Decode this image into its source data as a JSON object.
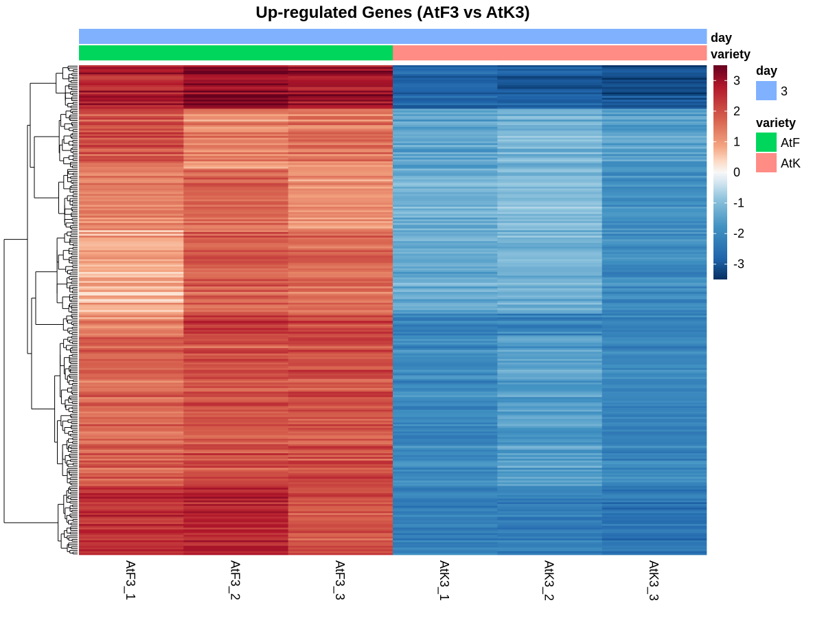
{
  "chart_data": {
    "type": "heatmap",
    "title": "Up-regulated Genes (AtF3 vs AtK3)",
    "columns": [
      "AtF3_1",
      "AtF3_2",
      "AtF3_3",
      "AtK3_1",
      "AtK3_2",
      "AtK3_3"
    ],
    "column_annotations": {
      "day": [
        "3",
        "3",
        "3",
        "3",
        "3",
        "3"
      ],
      "variety": [
        "AtF",
        "AtF",
        "AtF",
        "AtK",
        "AtK",
        "AtK"
      ]
    },
    "annotation_track_labels": [
      "day",
      "variety"
    ],
    "colorbar": {
      "min": -3.5,
      "max": 3.5,
      "ticks": [
        3,
        2,
        1,
        0,
        -1,
        -2,
        -3
      ],
      "tick_labels": [
        "3",
        "2",
        "1",
        "0",
        "-1",
        "-2",
        "-3"
      ],
      "low_color": "#053061",
      "mid_color": "#f7f7f7",
      "high_color": "#67001f"
    },
    "legend": {
      "day": {
        "title": "day",
        "items": [
          {
            "label": "3",
            "color": "#80b1ff"
          }
        ]
      },
      "variety": {
        "title": "variety",
        "items": [
          {
            "label": "AtF",
            "color": "#00d65c"
          },
          {
            "label": "AtK",
            "color": "#ff8c85"
          }
        ]
      }
    },
    "row_clusters": [
      {
        "genes": 24,
        "values": [
          2.7,
          3.2,
          3.0,
          -2.8,
          -2.9,
          -3.1
        ]
      },
      {
        "genes": 33,
        "values": [
          2.0,
          1.3,
          1.5,
          -1.5,
          -1.2,
          -1.6
        ]
      },
      {
        "genes": 34,
        "values": [
          1.3,
          1.7,
          1.1,
          -1.3,
          -1.1,
          -1.9
        ]
      },
      {
        "genes": 46,
        "values": [
          0.9,
          1.9,
          1.7,
          -1.3,
          -1.2,
          -1.9
        ]
      },
      {
        "genes": 12,
        "values": [
          1.3,
          2.3,
          2.1,
          -2.2,
          -2.1,
          -2.2
        ]
      },
      {
        "genes": 83,
        "values": [
          1.7,
          2.0,
          2.0,
          -2.0,
          -1.6,
          -2.1
        ]
      },
      {
        "genes": 38,
        "values": [
          2.4,
          2.6,
          1.9,
          -2.3,
          -2.3,
          -2.5
        ]
      }
    ]
  },
  "colors": {
    "grid_fill": "#ffffff",
    "dendrogram": "#000000"
  }
}
